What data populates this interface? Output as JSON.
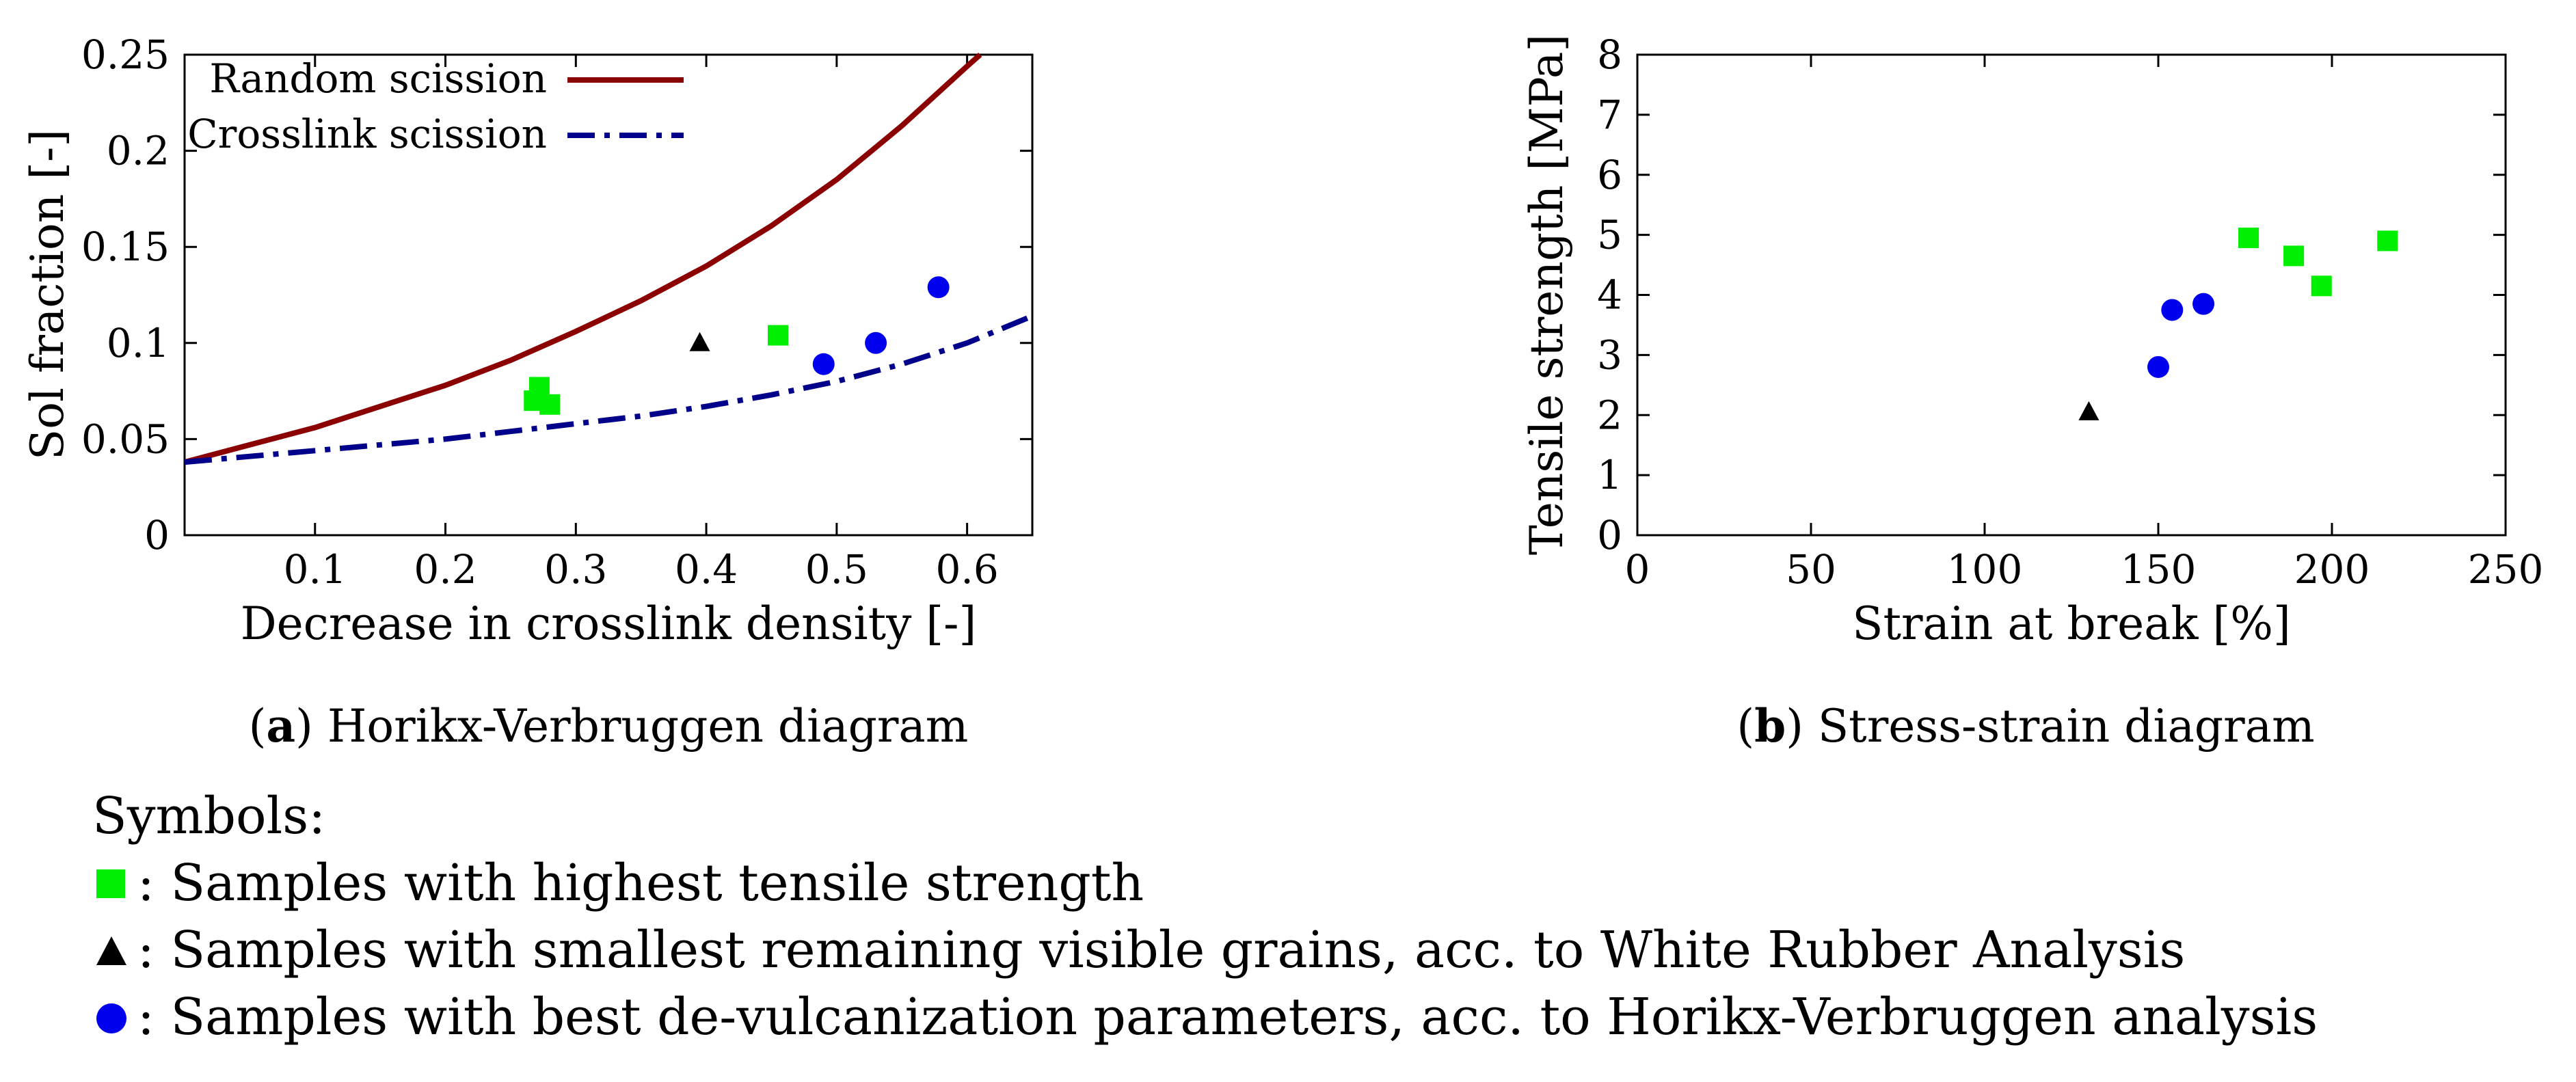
{
  "colors": {
    "random_scission": "#8b0000",
    "crosslink_scission": "#00008b",
    "square": "#00ee00",
    "triangle": "#000000",
    "circle": "#0000ee"
  },
  "chart_data": [
    {
      "type": "line+scatter",
      "title": "Horikx-Verbruggen diagram",
      "caption_letter": "a",
      "xlabel": "Decrease in crosslink density [-]",
      "ylabel": "Sol fraction [-]",
      "xlim": [
        0,
        0.65
      ],
      "ylim": [
        0,
        0.25
      ],
      "xticks": [
        "0.1",
        "0.2",
        "0.3",
        "0.4",
        "0.5",
        "0.6"
      ],
      "xtick_values": [
        0.1,
        0.2,
        0.3,
        0.4,
        0.5,
        0.6
      ],
      "yticks": [
        "0",
        "0.05",
        "0.1",
        "0.15",
        "0.2",
        "0.25"
      ],
      "ytick_values": [
        0,
        0.05,
        0.1,
        0.15,
        0.2,
        0.25
      ],
      "legend": {
        "placement": "top-left",
        "entries": [
          "Random scission",
          "Crosslink scission"
        ]
      },
      "series": [
        {
          "name": "Random scission",
          "style": "solid",
          "x": [
            0,
            0.05,
            0.1,
            0.15,
            0.2,
            0.25,
            0.3,
            0.35,
            0.4,
            0.45,
            0.5,
            0.55,
            0.6,
            0.61
          ],
          "y": [
            0.038,
            0.047,
            0.056,
            0.067,
            0.078,
            0.091,
            0.106,
            0.122,
            0.14,
            0.161,
            0.185,
            0.213,
            0.244,
            0.25
          ]
        },
        {
          "name": "Crosslink scission",
          "style": "dashdot",
          "x": [
            0,
            0.05,
            0.1,
            0.15,
            0.2,
            0.25,
            0.3,
            0.35,
            0.4,
            0.45,
            0.5,
            0.55,
            0.6,
            0.65
          ],
          "y": [
            0.038,
            0.041,
            0.044,
            0.047,
            0.05,
            0.054,
            0.058,
            0.062,
            0.067,
            0.073,
            0.08,
            0.089,
            0.1,
            0.114
          ]
        }
      ],
      "points": {
        "square": [
          {
            "x": 0.272,
            "y": 0.077
          },
          {
            "x": 0.268,
            "y": 0.07
          },
          {
            "x": 0.28,
            "y": 0.068
          },
          {
            "x": 0.455,
            "y": 0.104
          }
        ],
        "triangle": [
          {
            "x": 0.395,
            "y": 0.1
          }
        ],
        "circle": [
          {
            "x": 0.49,
            "y": 0.089
          },
          {
            "x": 0.53,
            "y": 0.1
          },
          {
            "x": 0.578,
            "y": 0.129
          }
        ]
      }
    },
    {
      "type": "scatter",
      "title": "Stress-strain diagram",
      "caption_letter": "b",
      "xlabel": "Strain at break [%]",
      "ylabel": "Tensile strength [MPa]",
      "xlim": [
        0,
        250
      ],
      "ylim": [
        0,
        8
      ],
      "xticks": [
        "0",
        "50",
        "100",
        "150",
        "200",
        "250"
      ],
      "xtick_values": [
        0,
        50,
        100,
        150,
        200,
        250
      ],
      "yticks": [
        "0",
        "1",
        "2",
        "3",
        "4",
        "5",
        "6",
        "7",
        "8"
      ],
      "ytick_values": [
        0,
        1,
        2,
        3,
        4,
        5,
        6,
        7,
        8
      ],
      "points": {
        "square": [
          {
            "x": 176,
            "y": 4.95
          },
          {
            "x": 189,
            "y": 4.65
          },
          {
            "x": 197,
            "y": 4.15
          },
          {
            "x": 216,
            "y": 4.9
          }
        ],
        "triangle": [
          {
            "x": 130,
            "y": 2.05
          }
        ],
        "circle": [
          {
            "x": 150,
            "y": 2.8
          },
          {
            "x": 154,
            "y": 3.75
          },
          {
            "x": 163,
            "y": 3.85
          }
        ]
      }
    }
  ],
  "symbols_legend": {
    "heading": "Symbols:",
    "items": [
      {
        "symbol": "square",
        "text": ": Samples with highest tensile strength"
      },
      {
        "symbol": "triangle",
        "text": ": Samples with smallest remaining visible grains, acc. to White Rubber Analysis"
      },
      {
        "symbol": "circle",
        "text": ": Samples with best de-vulcanization parameters, acc. to Horikx-Verbruggen analysis"
      }
    ]
  }
}
